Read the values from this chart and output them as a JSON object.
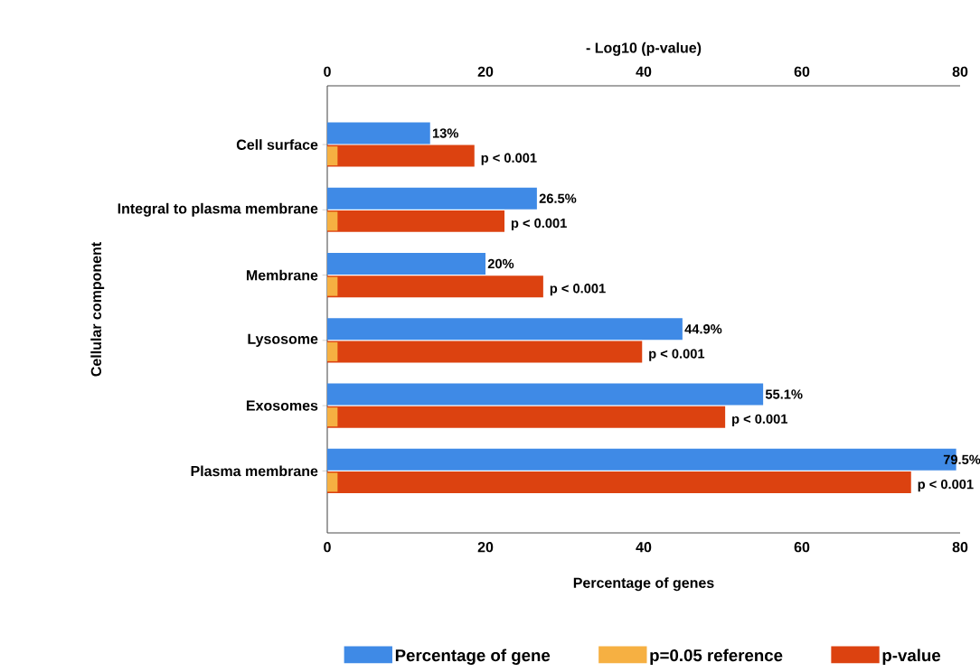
{
  "chart_data": {
    "type": "bar",
    "orientation": "horizontal",
    "x2label": "- Log10 (p-value)",
    "xlabel": "Percentage of genes",
    "ylabel": "Cellular component",
    "categories": [
      "Cell surface",
      "Integral to plasma membrane",
      "Membrane",
      "Lysosome",
      "Exosomes",
      "Plasma membrane"
    ],
    "xlim": [
      0,
      80
    ],
    "xticks": [
      0,
      20,
      40,
      60,
      80
    ],
    "x2lim": [
      0,
      80
    ],
    "x2ticks": [
      0,
      20,
      40,
      60,
      80
    ],
    "legend": "bottom",
    "series": [
      {
        "name": "Percentage of gene",
        "color": "#3f8ae6",
        "values": [
          13,
          26.5,
          20,
          44.9,
          55.1,
          79.5
        ],
        "value_labels": [
          "13%",
          "26.5%",
          "20%",
          "44.9%",
          "55.1%",
          "79.5%"
        ]
      },
      {
        "name": "p=0.05 reference",
        "color": "#f6b042",
        "axis": "x2",
        "values": [
          1.3,
          1.3,
          1.3,
          1.3,
          1.3,
          1.3
        ]
      },
      {
        "name": "p-value",
        "color": "#dc4210",
        "axis": "x2",
        "values": [
          18.6,
          22.4,
          27.3,
          39.8,
          50.3,
          73.8
        ],
        "value_labels": [
          "p < 0.001",
          "p < 0.001",
          "p < 0.001",
          "p < 0.001",
          "p < 0.001",
          "p < 0.001"
        ]
      }
    ]
  }
}
